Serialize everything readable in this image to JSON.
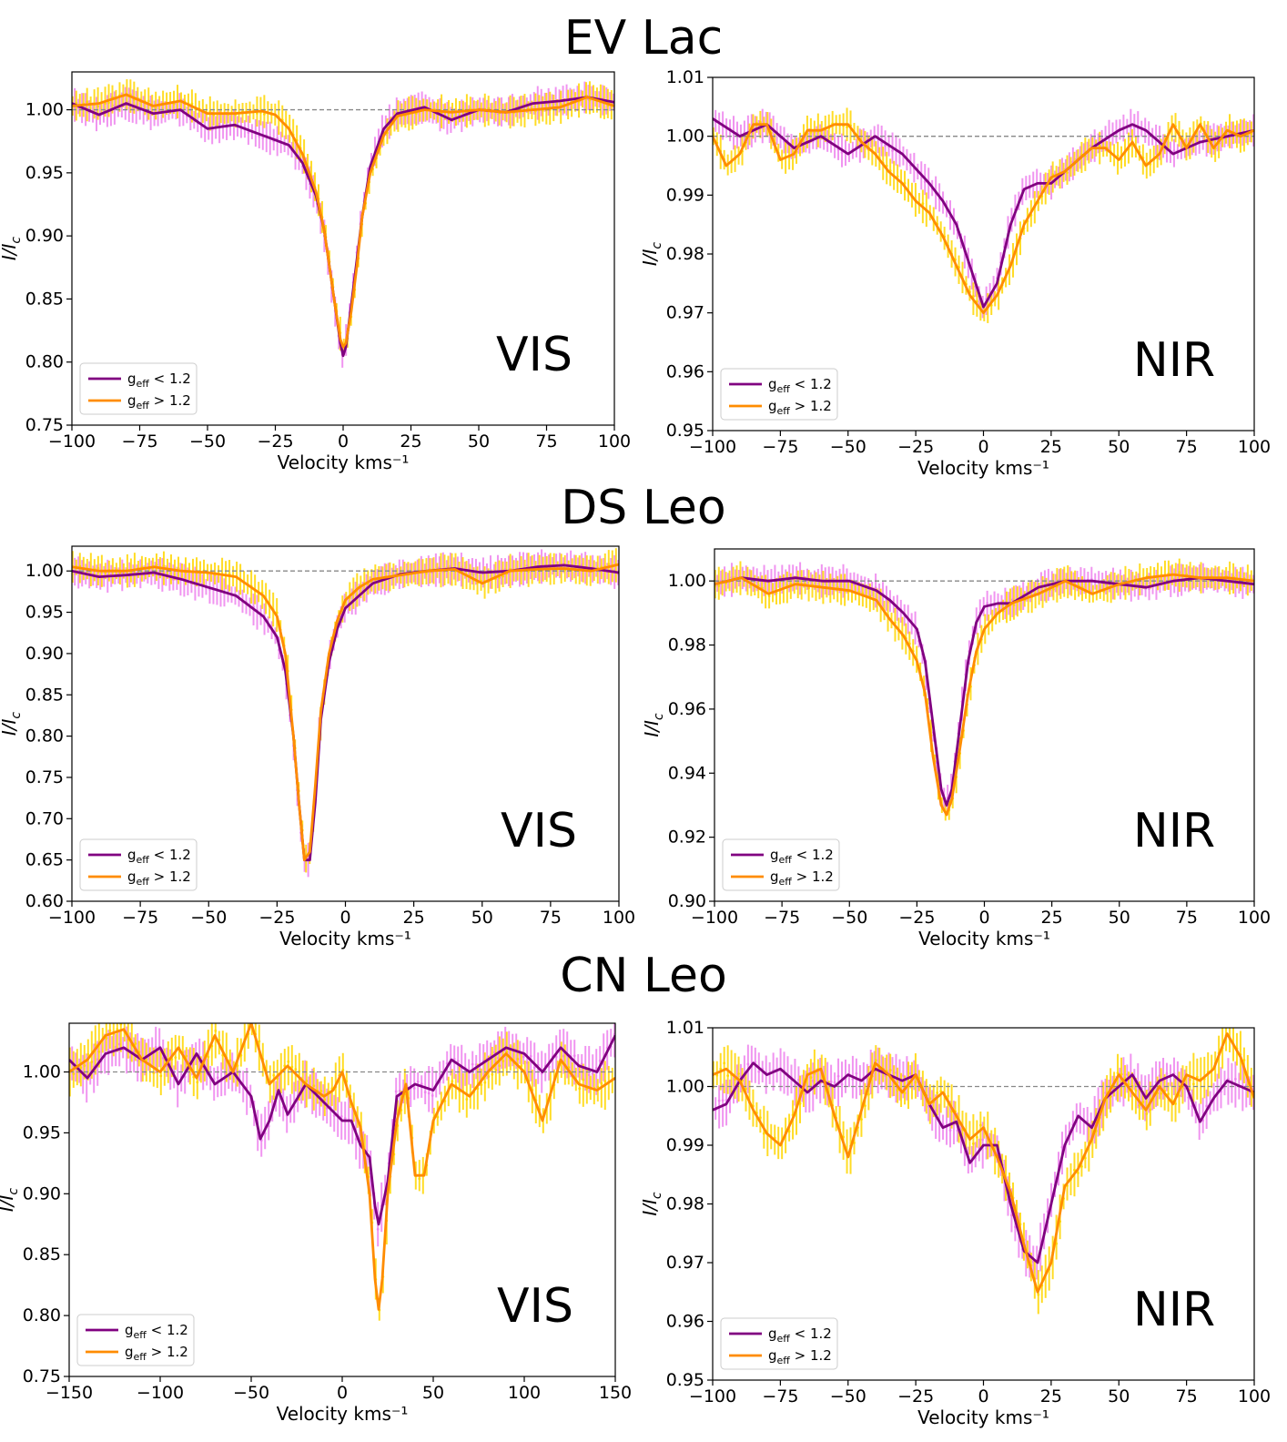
{
  "figure": {
    "rows": [
      {
        "title": "EV Lac"
      },
      {
        "title": "DS Leo"
      },
      {
        "title": "CN Leo"
      }
    ]
  },
  "colors": {
    "low_geff": "#800080",
    "high_geff": "#ff8c00",
    "low_geff_err": "#ee82ee",
    "high_geff_err": "#ffd700",
    "reference": "#888888"
  },
  "chart_data": [
    {
      "type": "line",
      "star": "EV Lac",
      "band": "VIS",
      "xlabel": "Velocity kms⁻¹",
      "ylabel": "I/I_c",
      "xlim": [
        -100,
        100
      ],
      "ylim": [
        0.75,
        1.03
      ],
      "xticks": [
        -100,
        -75,
        -50,
        -25,
        0,
        25,
        50,
        75,
        100
      ],
      "yticks": [
        0.75,
        0.8,
        0.85,
        0.9,
        0.95,
        1.0
      ],
      "reference_line": 1.0,
      "legend_position": "lower left",
      "series": [
        {
          "name": "g_eff < 1.2",
          "x": [
            -100,
            -90,
            -80,
            -70,
            -60,
            -50,
            -40,
            -30,
            -25,
            -20,
            -15,
            -10,
            -7,
            -5,
            -3,
            -1,
            0,
            1,
            3,
            5,
            7,
            10,
            15,
            20,
            30,
            40,
            50,
            60,
            70,
            80,
            90,
            100
          ],
          "y": [
            1.005,
            0.996,
            1.005,
            0.997,
            1.0,
            0.985,
            0.988,
            0.98,
            0.976,
            0.972,
            0.958,
            0.932,
            0.905,
            0.875,
            0.845,
            0.815,
            0.805,
            0.812,
            0.845,
            0.88,
            0.915,
            0.955,
            0.985,
            0.997,
            1.002,
            0.992,
            1.0,
            0.998,
            1.005,
            1.007,
            1.01,
            1.006
          ]
        },
        {
          "name": "g_eff > 1.2",
          "x": [
            -100,
            -90,
            -80,
            -70,
            -60,
            -50,
            -40,
            -30,
            -25,
            -20,
            -15,
            -10,
            -7,
            -5,
            -3,
            -1,
            0,
            1,
            3,
            5,
            7,
            10,
            15,
            20,
            30,
            40,
            50,
            60,
            70,
            80,
            90,
            100
          ],
          "y": [
            1.003,
            1.005,
            1.012,
            1.003,
            1.007,
            0.997,
            0.997,
            0.999,
            0.996,
            0.985,
            0.965,
            0.935,
            0.905,
            0.875,
            0.845,
            0.818,
            0.812,
            0.815,
            0.84,
            0.875,
            0.915,
            0.95,
            0.98,
            0.995,
            1.0,
            0.998,
            1.0,
            0.998,
            1.0,
            1.002,
            1.01,
            1.003
          ]
        }
      ]
    },
    {
      "type": "line",
      "star": "EV Lac",
      "band": "NIR",
      "xlabel": "Velocity kms⁻¹",
      "ylabel": "I/I_c",
      "xlim": [
        -100,
        100
      ],
      "ylim": [
        0.95,
        1.01
      ],
      "xticks": [
        -100,
        -75,
        -50,
        -25,
        0,
        25,
        50,
        75,
        100
      ],
      "yticks": [
        0.95,
        0.96,
        0.97,
        0.98,
        0.99,
        1.0,
        1.01
      ],
      "reference_line": 1.0,
      "legend_position": "lower left",
      "series": [
        {
          "name": "g_eff < 1.2",
          "x": [
            -100,
            -90,
            -80,
            -70,
            -60,
            -50,
            -40,
            -30,
            -20,
            -15,
            -10,
            -5,
            0,
            5,
            10,
            15,
            20,
            25,
            30,
            40,
            50,
            55,
            60,
            70,
            80,
            90,
            100
          ],
          "y": [
            1.003,
            1.0,
            1.002,
            0.998,
            1.0,
            0.997,
            1.0,
            0.997,
            0.992,
            0.989,
            0.985,
            0.978,
            0.971,
            0.975,
            0.985,
            0.991,
            0.992,
            0.992,
            0.994,
            0.998,
            1.001,
            1.002,
            1.001,
            0.997,
            0.999,
            1.0,
            1.001
          ]
        },
        {
          "name": "g_eff > 1.2",
          "x": [
            -100,
            -95,
            -90,
            -85,
            -80,
            -75,
            -70,
            -65,
            -60,
            -55,
            -50,
            -45,
            -40,
            -35,
            -30,
            -25,
            -20,
            -15,
            -10,
            -5,
            0,
            5,
            10,
            15,
            20,
            25,
            30,
            35,
            40,
            45,
            50,
            55,
            60,
            65,
            70,
            75,
            80,
            85,
            90,
            95,
            100
          ],
          "y": [
            1.0,
            0.995,
            0.997,
            1.002,
            1.002,
            0.996,
            0.997,
            1.001,
            1.001,
            1.002,
            1.002,
            0.999,
            0.997,
            0.994,
            0.992,
            0.989,
            0.987,
            0.983,
            0.978,
            0.973,
            0.97,
            0.973,
            0.978,
            0.985,
            0.989,
            0.993,
            0.994,
            0.996,
            0.998,
            0.998,
            0.996,
            0.999,
            0.995,
            0.997,
            1.002,
            0.998,
            1.002,
            0.998,
            1.001,
            1.0,
            1.001
          ]
        }
      ]
    },
    {
      "type": "line",
      "star": "DS Leo",
      "band": "VIS",
      "xlabel": "Velocity kms⁻¹",
      "ylabel": "I/I_c",
      "xlim": [
        -100,
        100
      ],
      "ylim": [
        0.6,
        1.03
      ],
      "xticks": [
        -100,
        -75,
        -50,
        -25,
        0,
        25,
        50,
        75,
        100
      ],
      "yticks": [
        0.6,
        0.65,
        0.7,
        0.75,
        0.8,
        0.85,
        0.9,
        0.95,
        1.0
      ],
      "reference_line": 1.0,
      "legend_position": "lower left",
      "series": [
        {
          "name": "g_eff < 1.2",
          "x": [
            -100,
            -90,
            -80,
            -70,
            -60,
            -50,
            -40,
            -30,
            -25,
            -22,
            -19,
            -17,
            -15,
            -13,
            -11,
            -9,
            -6,
            -3,
            0,
            5,
            10,
            20,
            30,
            40,
            50,
            60,
            70,
            80,
            90,
            100
          ],
          "y": [
            1.0,
            0.993,
            0.995,
            0.998,
            0.99,
            0.98,
            0.97,
            0.945,
            0.92,
            0.88,
            0.8,
            0.72,
            0.65,
            0.65,
            0.72,
            0.82,
            0.89,
            0.93,
            0.955,
            0.97,
            0.985,
            0.996,
            1.0,
            1.003,
            0.998,
            1.0,
            1.005,
            1.007,
            1.003,
            0.998
          ]
        },
        {
          "name": "g_eff > 1.2",
          "x": [
            -100,
            -90,
            -80,
            -70,
            -60,
            -50,
            -40,
            -30,
            -25,
            -22,
            -19,
            -17,
            -15,
            -13,
            -11,
            -9,
            -6,
            -3,
            0,
            5,
            10,
            20,
            30,
            40,
            50,
            60,
            70,
            80,
            90,
            100
          ],
          "y": [
            1.005,
            1.0,
            1.0,
            1.005,
            1.0,
            0.998,
            0.993,
            0.97,
            0.945,
            0.9,
            0.8,
            0.72,
            0.65,
            0.66,
            0.74,
            0.83,
            0.9,
            0.94,
            0.965,
            0.98,
            0.99,
            0.995,
            1.0,
            1.002,
            0.985,
            1.0,
            1.002,
            1.003,
            1.0,
            1.008
          ]
        }
      ]
    },
    {
      "type": "line",
      "star": "DS Leo",
      "band": "NIR",
      "xlabel": "Velocity kms⁻¹",
      "ylabel": "I/I_c",
      "xlim": [
        -100,
        100
      ],
      "ylim": [
        0.9,
        1.01
      ],
      "xticks": [
        -100,
        -75,
        -50,
        -25,
        0,
        25,
        50,
        75,
        100
      ],
      "yticks": [
        0.9,
        0.92,
        0.94,
        0.96,
        0.98,
        1.0
      ],
      "reference_line": 1.0,
      "legend_position": "lower left",
      "series": [
        {
          "name": "g_eff < 1.2",
          "x": [
            -100,
            -90,
            -80,
            -70,
            -60,
            -50,
            -40,
            -35,
            -30,
            -25,
            -22,
            -19,
            -16,
            -14,
            -12,
            -9,
            -6,
            -3,
            0,
            5,
            10,
            20,
            30,
            40,
            50,
            60,
            70,
            80,
            90,
            100
          ],
          "y": [
            0.999,
            1.001,
            1.0,
            1.001,
            1.0,
            1.0,
            0.997,
            0.994,
            0.99,
            0.985,
            0.975,
            0.955,
            0.935,
            0.93,
            0.935,
            0.955,
            0.975,
            0.987,
            0.992,
            0.993,
            0.993,
            0.998,
            1.0,
            1.0,
            0.999,
            0.998,
            1.0,
            1.001,
            1.0,
            0.999
          ]
        },
        {
          "name": "g_eff > 1.2",
          "x": [
            -100,
            -90,
            -80,
            -70,
            -60,
            -50,
            -40,
            -35,
            -30,
            -25,
            -22,
            -19,
            -16,
            -14,
            -12,
            -9,
            -6,
            -3,
            0,
            5,
            10,
            20,
            30,
            40,
            50,
            60,
            70,
            80,
            90,
            100
          ],
          "y": [
            0.999,
            1.001,
            0.996,
            0.999,
            0.998,
            0.997,
            0.994,
            0.988,
            0.983,
            0.975,
            0.965,
            0.945,
            0.93,
            0.927,
            0.932,
            0.948,
            0.965,
            0.978,
            0.985,
            0.99,
            0.993,
            0.996,
            1.0,
            0.996,
            0.999,
            1.001,
            1.002,
            1.001,
            1.001,
            1.0
          ]
        }
      ]
    },
    {
      "type": "line",
      "star": "CN Leo",
      "band": "VIS",
      "xlabel": "Velocity kms⁻¹",
      "ylabel": "I/I_c",
      "xlim": [
        -150,
        150
      ],
      "ylim": [
        0.75,
        1.04
      ],
      "xticks": [
        -150,
        -100,
        -50,
        0,
        50,
        100,
        150
      ],
      "yticks": [
        0.75,
        0.8,
        0.85,
        0.9,
        0.95,
        1.0
      ],
      "reference_line": 1.0,
      "legend_position": "lower left",
      "series": [
        {
          "name": "g_eff < 1.2",
          "x": [
            -150,
            -140,
            -130,
            -120,
            -110,
            -100,
            -90,
            -80,
            -70,
            -60,
            -50,
            -45,
            -40,
            -35,
            -30,
            -20,
            -10,
            0,
            5,
            10,
            15,
            18,
            20,
            25,
            30,
            40,
            50,
            60,
            70,
            80,
            90,
            100,
            110,
            120,
            130,
            140,
            150
          ],
          "y": [
            1.01,
            0.995,
            1.015,
            1.02,
            1.01,
            1.02,
            0.99,
            1.015,
            0.99,
            1.0,
            0.98,
            0.945,
            0.96,
            0.985,
            0.965,
            0.99,
            0.975,
            0.96,
            0.96,
            0.94,
            0.93,
            0.89,
            0.875,
            0.91,
            0.98,
            0.99,
            0.985,
            1.01,
            1.0,
            1.01,
            1.02,
            1.015,
            1.0,
            1.02,
            1.005,
            1.0,
            1.03
          ]
        },
        {
          "name": "g_eff > 1.2",
          "x": [
            -150,
            -140,
            -130,
            -120,
            -110,
            -100,
            -90,
            -80,
            -70,
            -60,
            -50,
            -40,
            -30,
            -20,
            -10,
            -5,
            0,
            5,
            10,
            15,
            18,
            20,
            22,
            25,
            30,
            35,
            40,
            45,
            50,
            55,
            60,
            70,
            80,
            90,
            100,
            110,
            120,
            130,
            140,
            150
          ],
          "y": [
            1.0,
            1.01,
            1.03,
            1.035,
            1.01,
            1.0,
            1.02,
            0.995,
            1.03,
            1.0,
            1.04,
            0.99,
            1.005,
            0.99,
            0.98,
            0.985,
            1.0,
            0.975,
            0.955,
            0.9,
            0.83,
            0.805,
            0.83,
            0.9,
            0.96,
            0.99,
            0.915,
            0.915,
            0.96,
            0.975,
            0.99,
            0.98,
            1.0,
            1.015,
            1.0,
            0.96,
            1.01,
            0.99,
            0.985,
            0.995
          ]
        }
      ]
    },
    {
      "type": "line",
      "star": "CN Leo",
      "band": "NIR",
      "xlabel": "Velocity kms⁻¹",
      "ylabel": "I/I_c",
      "xlim": [
        -100,
        100
      ],
      "ylim": [
        0.95,
        1.01
      ],
      "xticks": [
        -100,
        -75,
        -50,
        -25,
        0,
        25,
        50,
        75,
        100
      ],
      "yticks": [
        0.95,
        0.96,
        0.97,
        0.98,
        0.99,
        1.0,
        1.01
      ],
      "reference_line": 1.0,
      "legend_position": "lower left",
      "series": [
        {
          "name": "g_eff < 1.2",
          "x": [
            -100,
            -95,
            -90,
            -85,
            -80,
            -75,
            -70,
            -65,
            -60,
            -55,
            -50,
            -45,
            -40,
            -35,
            -30,
            -25,
            -20,
            -15,
            -10,
            -5,
            0,
            5,
            10,
            15,
            20,
            25,
            30,
            35,
            40,
            45,
            50,
            55,
            60,
            65,
            70,
            75,
            80,
            85,
            90,
            95,
            100
          ],
          "y": [
            0.996,
            0.997,
            1.001,
            1.004,
            1.002,
            1.003,
            1.001,
            0.999,
            1.001,
            1.0,
            1.002,
            1.001,
            1.003,
            1.002,
            1.001,
            1.002,
            0.997,
            0.993,
            0.994,
            0.987,
            0.99,
            0.99,
            0.98,
            0.972,
            0.97,
            0.98,
            0.99,
            0.995,
            0.993,
            0.998,
            1.0,
            1.002,
            0.998,
            1.001,
            1.002,
            1.0,
            0.994,
            0.998,
            1.001,
            1.0,
            0.999
          ]
        },
        {
          "name": "g_eff > 1.2",
          "x": [
            -100,
            -95,
            -90,
            -85,
            -80,
            -75,
            -70,
            -65,
            -60,
            -55,
            -50,
            -45,
            -40,
            -35,
            -30,
            -25,
            -20,
            -15,
            -10,
            -5,
            0,
            5,
            10,
            15,
            20,
            25,
            30,
            35,
            40,
            45,
            50,
            55,
            60,
            65,
            70,
            75,
            80,
            85,
            90,
            95,
            100
          ],
          "y": [
            1.002,
            1.003,
            1.001,
            0.996,
            0.992,
            0.99,
            0.995,
            1.002,
            1.003,
            0.995,
            0.988,
            0.996,
            1.004,
            1.002,
            0.999,
            1.002,
            0.997,
            0.999,
            0.995,
            0.991,
            0.993,
            0.988,
            0.982,
            0.973,
            0.965,
            0.97,
            0.983,
            0.986,
            0.991,
            0.998,
            1.002,
            0.999,
            0.996,
            1.0,
            0.997,
            1.002,
            1.001,
            1.003,
            1.009,
            1.005,
            0.998
          ]
        }
      ]
    }
  ]
}
